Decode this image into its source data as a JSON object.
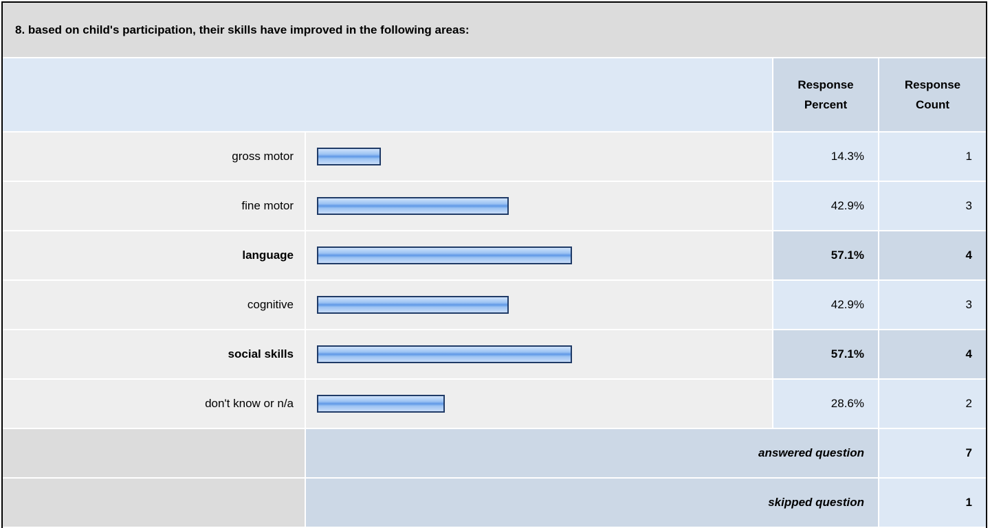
{
  "title": "8. based on child's participation, their skills have improved in the following areas:",
  "header": {
    "percent": "Response Percent",
    "count": "Response Count"
  },
  "rows": [
    {
      "label": "gross motor",
      "percent": 14.3,
      "percent_label": "14.3%",
      "count": 1
    },
    {
      "label": "fine motor",
      "percent": 42.9,
      "percent_label": "42.9%",
      "count": 3
    },
    {
      "label": "language",
      "percent": 57.1,
      "percent_label": "57.1%",
      "count": 4
    },
    {
      "label": "cognitive",
      "percent": 42.9,
      "percent_label": "42.9%",
      "count": 3
    },
    {
      "label": "social skills",
      "percent": 57.1,
      "percent_label": "57.1%",
      "count": 4
    },
    {
      "label": "don't know or n/a",
      "percent": 28.6,
      "percent_label": "28.6%",
      "count": 2
    }
  ],
  "answered": {
    "label": "answered question",
    "count": 7
  },
  "skipped": {
    "label": "skipped question",
    "count": 1
  }
}
